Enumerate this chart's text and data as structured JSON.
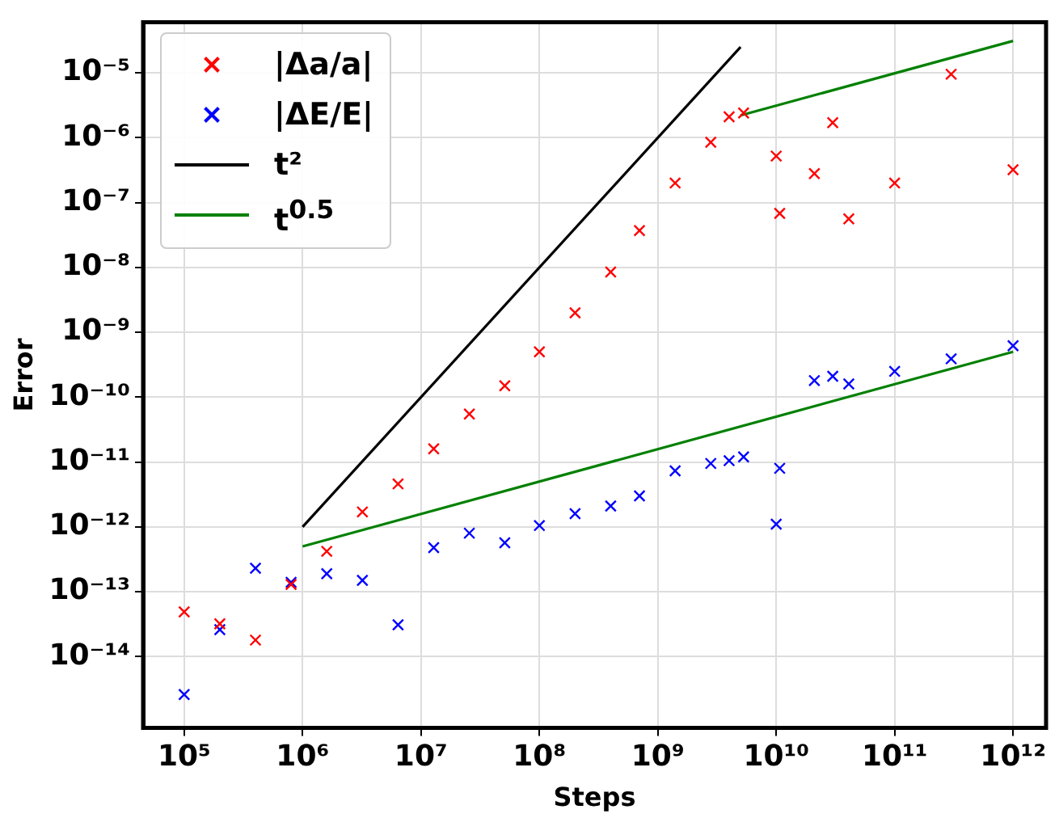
{
  "chart_data": {
    "type": "scatter",
    "xlabel": "Steps",
    "ylabel": "Error",
    "log": "xy",
    "grid": true,
    "legend": "top left",
    "marker": "cross",
    "xlim": [
      45000,
      1900000000000.0
    ],
    "ylim": [
      8e-16,
      6e-05
    ],
    "xticks": [
      {
        "value": 100000.0,
        "label": "10⁵"
      },
      {
        "value": 1000000.0,
        "label": "10⁶"
      },
      {
        "value": 10000000.0,
        "label": "10⁷"
      },
      {
        "value": 100000000.0,
        "label": "10⁸"
      },
      {
        "value": 1000000000.0,
        "label": "10⁹"
      },
      {
        "value": 10000000000.0,
        "label": "10¹⁰"
      },
      {
        "value": 100000000000.0,
        "label": "10¹¹"
      },
      {
        "value": 1000000000000.0,
        "label": "10¹²"
      }
    ],
    "yticks": [
      {
        "value": 1e-14,
        "label": "10⁻¹⁴"
      },
      {
        "value": 1e-13,
        "label": "10⁻¹³"
      },
      {
        "value": 1e-12,
        "label": "10⁻¹²"
      },
      {
        "value": 1e-11,
        "label": "10⁻¹¹"
      },
      {
        "value": 1e-10,
        "label": "10⁻¹⁰"
      },
      {
        "value": 1e-09,
        "label": "10⁻⁹"
      },
      {
        "value": 1e-08,
        "label": "10⁻⁸"
      },
      {
        "value": 1e-07,
        "label": "10⁻⁷"
      },
      {
        "value": 1e-06,
        "label": "10⁻⁶"
      },
      {
        "value": 1e-05,
        "label": "10⁻⁵"
      }
    ],
    "series": [
      {
        "name": "|Δa/a|",
        "color": "#ff0000",
        "x": [
          100000.0,
          200000.0,
          400000.0,
          800000.0,
          1600000.0,
          3200000.0,
          6400000.0,
          12800000.0,
          25600000.0,
          51000000.0,
          100000000.0,
          200000000.0,
          400000000.0,
          700000000.0,
          1400000000.0,
          2800000000.0,
          4000000000.0,
          5300000000.0,
          10000000000.0,
          10700000000.0,
          21000000000.0,
          30000000000.0,
          41000000000.0,
          100000000000.0,
          300000000000.0,
          1000000000000.0
        ],
        "values": [
          4.9e-14,
          3.2e-14,
          1.8e-14,
          1.3e-13,
          4.2e-13,
          1.7e-12,
          4.6e-12,
          1.6e-11,
          5.5e-11,
          1.5e-10,
          5e-10,
          2e-09,
          8.5e-09,
          3.7e-08,
          2e-07,
          8.5e-07,
          2.1e-06,
          2.4e-06,
          5.2e-07,
          6.8e-08,
          2.8e-07,
          1.7e-06,
          5.6e-08,
          2e-07,
          9.5e-06,
          3.2e-07
        ]
      },
      {
        "name": "|ΔE/E|",
        "color": "#0000ff",
        "x": [
          100000.0,
          200000.0,
          400000.0,
          800000.0,
          1600000.0,
          3200000.0,
          6400000.0,
          12800000.0,
          25600000.0,
          51000000.0,
          100000000.0,
          200000000.0,
          400000000.0,
          700000000.0,
          1400000000.0,
          2800000000.0,
          4000000000.0,
          5300000000.0,
          10000000000.0,
          10700000000.0,
          21000000000.0,
          30000000000.0,
          41000000000.0,
          100000000000.0,
          300000000000.0,
          1000000000000.0
        ],
        "values": [
          2.6e-15,
          2.6e-14,
          2.3e-13,
          1.4e-13,
          1.9e-13,
          1.5e-13,
          3.1e-14,
          4.8e-13,
          8e-13,
          5.7e-13,
          1.05e-12,
          1.6e-12,
          2.1e-12,
          3e-12,
          7.3e-12,
          9.5e-12,
          1.05e-11,
          1.2e-11,
          1.1e-12,
          8e-12,
          1.8e-10,
          2.1e-10,
          1.6e-10,
          2.5e-10,
          3.9e-10,
          6.2e-10
        ]
      },
      {
        "name": "t²",
        "type": "line",
        "marker": "none",
        "color": "#000000",
        "x": [
          1000000.0,
          5000000000.0
        ],
        "values": [
          1e-12,
          2.5e-05
        ]
      },
      {
        "name": "t$^{0.5}$",
        "type": "line",
        "marker": "none",
        "color": "#008000",
        "x": [
          5000000000.0,
          1000000000000.0
        ],
        "values": [
          2.2e-06,
          3.1e-05
        ]
      },
      {
        "type": "line",
        "marker": "none",
        "color": "#008000",
        "x": [
          1000000.0,
          1000000000000.0
        ],
        "values": [
          5e-13,
          5e-10
        ]
      }
    ]
  }
}
